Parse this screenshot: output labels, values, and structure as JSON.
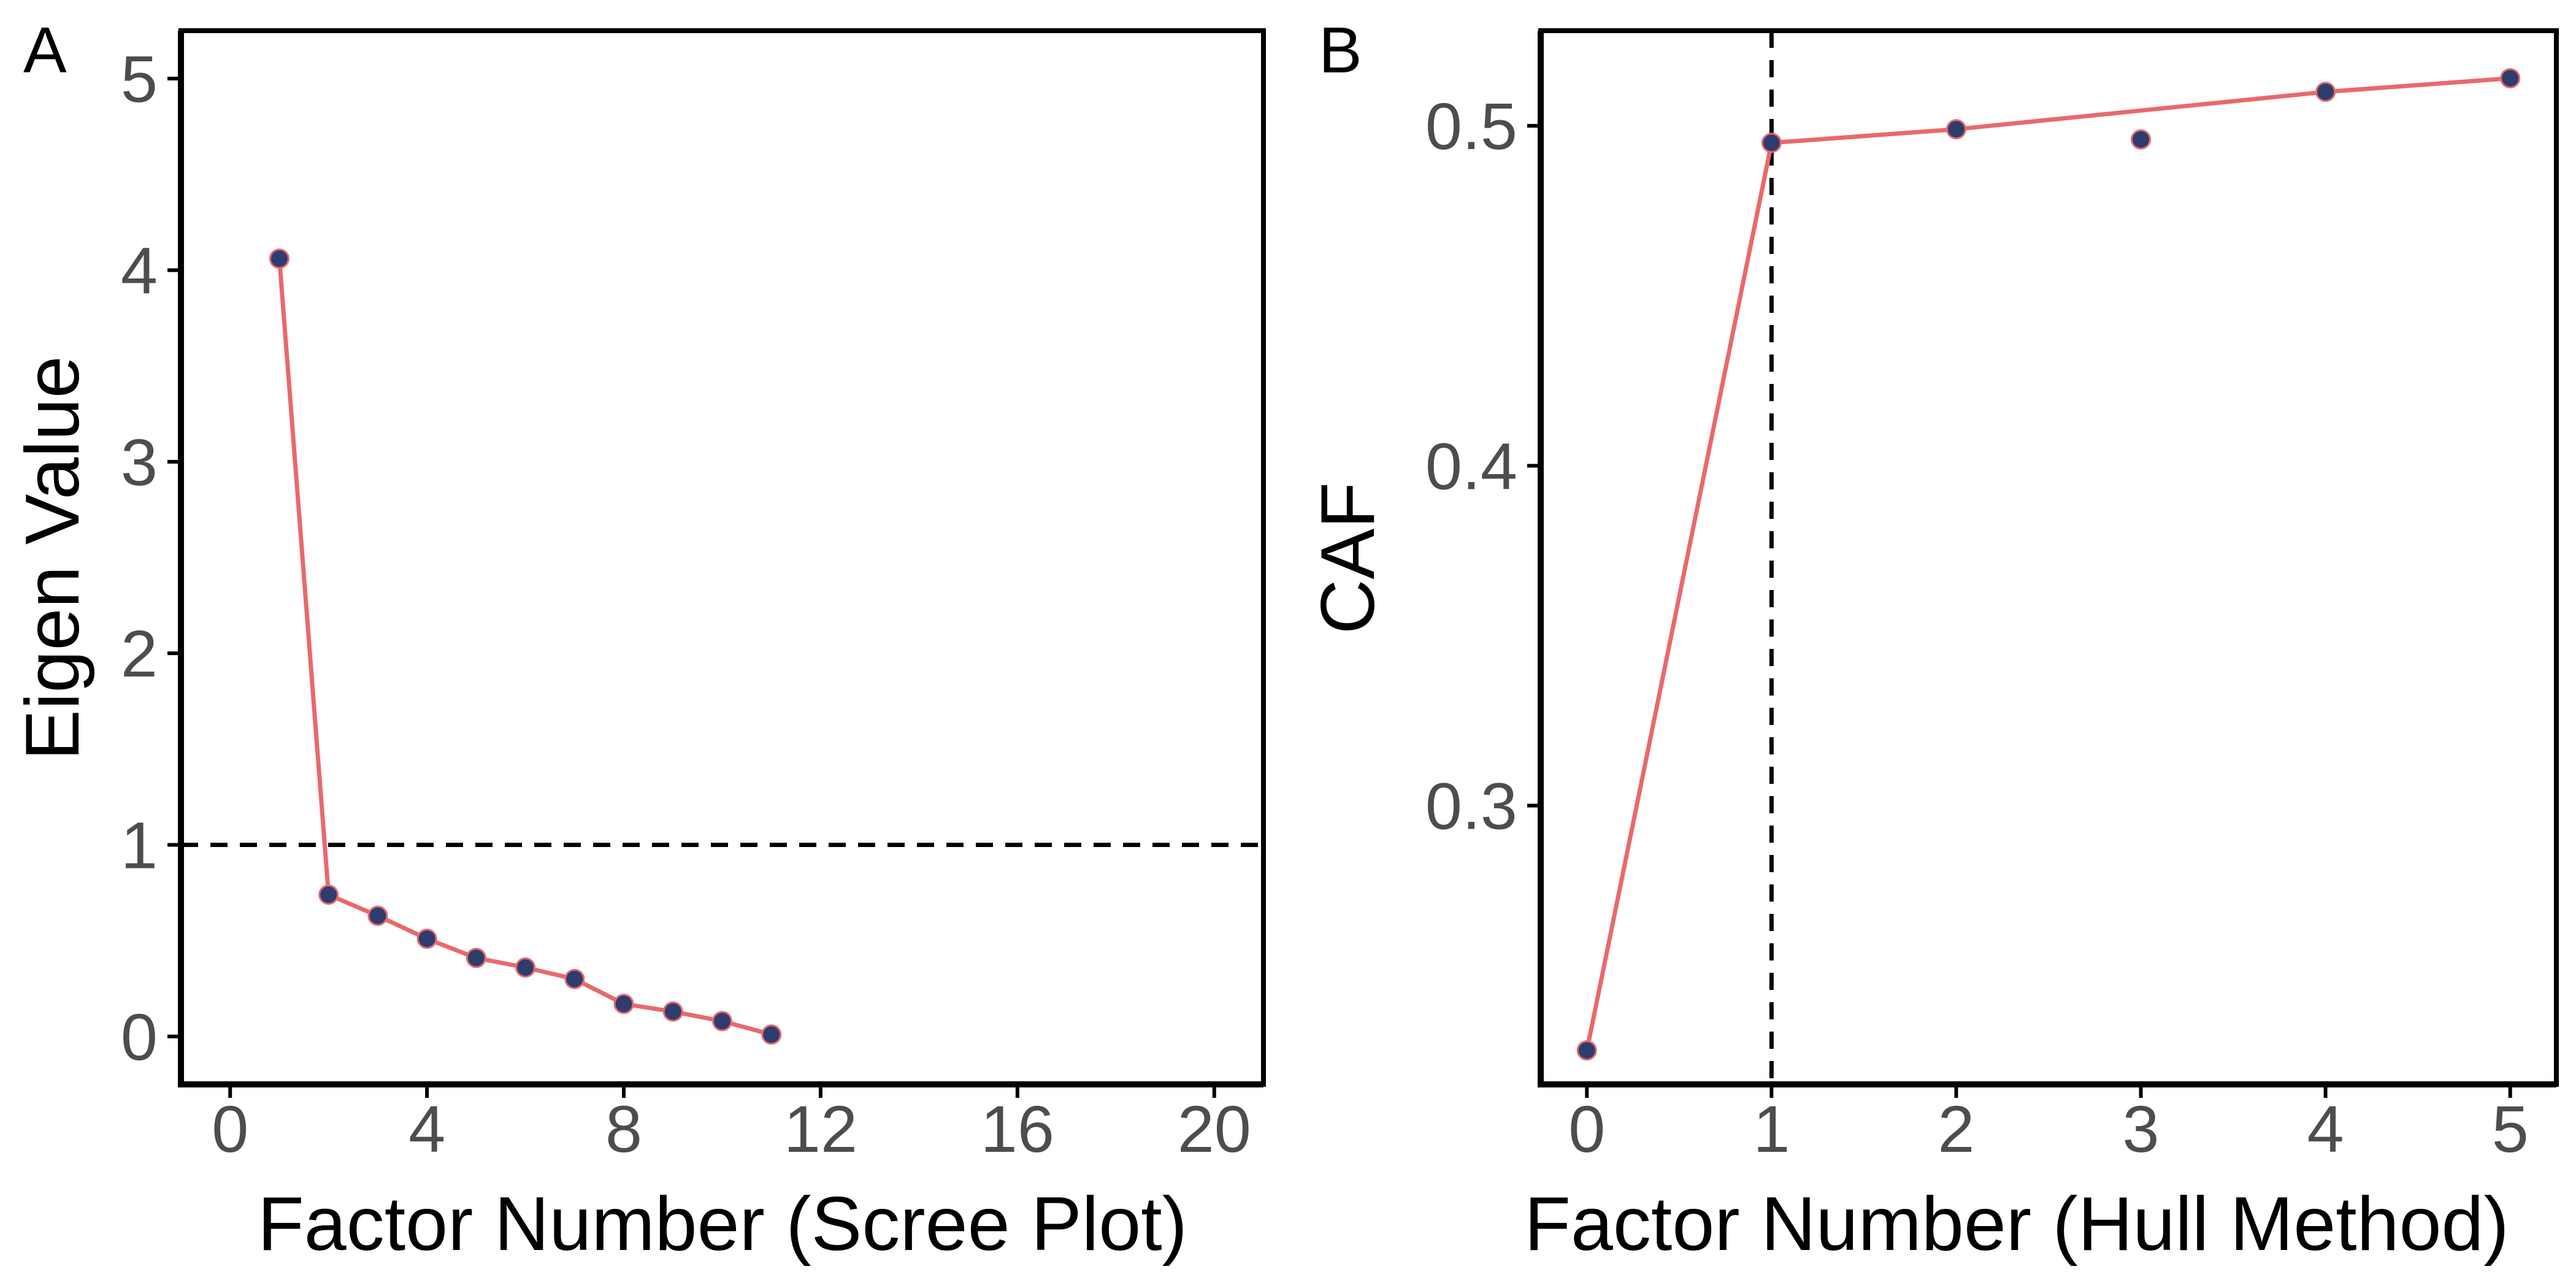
{
  "colors": {
    "line": "#E8696B",
    "point_fill": "#2C3D6E",
    "point_stroke": "#E8696B",
    "frame": "#000000",
    "reference": "#000000",
    "tick_text": "#4d4d4d"
  },
  "chart_data": [
    {
      "type": "line",
      "panel_tag": "A",
      "xlabel": "Factor Number (Scree Plot)",
      "ylabel": "Eigen Value",
      "xlim": [
        -1,
        21
      ],
      "ylim": [
        -0.25,
        5.25
      ],
      "xticks": [
        0,
        4,
        8,
        12,
        16,
        20
      ],
      "xtick_labels": [
        "0",
        "4",
        "8",
        "12",
        "16",
        "20"
      ],
      "yticks": [
        0,
        1,
        2,
        3,
        4,
        5
      ],
      "ytick_labels": [
        "0",
        "1",
        "2",
        "3",
        "4",
        "5"
      ],
      "grid": false,
      "reference_line": {
        "orientation": "horizontal",
        "value": 1,
        "style": "dashed"
      },
      "x": [
        1,
        2,
        3,
        4,
        5,
        6,
        7,
        8,
        9,
        10,
        11
      ],
      "series": [
        {
          "values": [
            4.06,
            0.74,
            0.63,
            0.51,
            0.41,
            0.36,
            0.3,
            0.17,
            0.13,
            0.08,
            0.01
          ]
        }
      ]
    },
    {
      "type": "line",
      "panel_tag": "B",
      "xlabel": "Factor Number (Hull Method)",
      "ylabel": "CAF",
      "xlim": [
        -0.25,
        5.25
      ],
      "ylim": [
        0.218,
        0.528
      ],
      "xticks": [
        0,
        1,
        2,
        3,
        4,
        5
      ],
      "xtick_labels": [
        "0",
        "1",
        "2",
        "3",
        "4",
        "5"
      ],
      "yticks": [
        0.3,
        0.4,
        0.5
      ],
      "ytick_labels": [
        "0.3",
        "0.4",
        "0.5"
      ],
      "grid": false,
      "reference_line": {
        "orientation": "vertical",
        "value": 1,
        "style": "dashed"
      },
      "points": {
        "x": [
          0,
          1,
          2,
          3,
          4,
          5
        ],
        "values": [
          0.228,
          0.495,
          0.499,
          0.496,
          0.51,
          0.514
        ]
      },
      "hull_line": {
        "x": [
          0,
          1,
          2,
          4,
          5
        ],
        "values": [
          0.228,
          0.495,
          0.499,
          0.51,
          0.514
        ]
      }
    }
  ]
}
